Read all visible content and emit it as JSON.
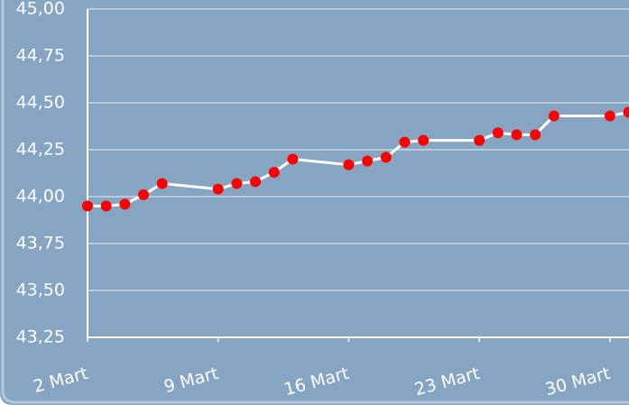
{
  "chart_data": {
    "type": "line",
    "x": [
      2,
      3,
      4,
      5,
      6,
      9,
      10,
      11,
      12,
      13,
      16,
      17,
      18,
      19,
      20,
      23,
      24,
      25,
      26,
      27,
      30,
      31
    ],
    "series": [
      {
        "color": "#ff0000",
        "values": [
          43.95,
          43.95,
          43.96,
          44.01,
          44.07,
          44.04,
          44.07,
          44.08,
          44.13,
          44.2,
          44.17,
          44.19,
          44.21,
          44.29,
          44.3,
          44.3,
          44.34,
          44.33,
          44.33,
          44.43,
          44.43,
          44.45
        ]
      }
    ],
    "xlim": [
      2,
      31
    ],
    "xticks": [
      {
        "value": 2,
        "label": "2 Mart"
      },
      {
        "value": 9,
        "label": "9 Mart"
      },
      {
        "value": 16,
        "label": "16 Mart"
      },
      {
        "value": 23,
        "label": "23 Mart"
      },
      {
        "value": 30,
        "label": "30 Mart"
      }
    ],
    "ylim": [
      43.25,
      45
    ],
    "yticks": [
      {
        "value": 43.25,
        "label": "43,25"
      },
      {
        "value": 43.5,
        "label": "43,50"
      },
      {
        "value": 43.75,
        "label": "43,75"
      },
      {
        "value": 44,
        "label": "44,00"
      },
      {
        "value": 44.25,
        "label": "44,25"
      },
      {
        "value": 44.5,
        "label": "44,50"
      },
      {
        "value": 44.75,
        "label": "44,75"
      },
      {
        "value": 45,
        "label": "45,00"
      }
    ],
    "grid": true
  }
}
